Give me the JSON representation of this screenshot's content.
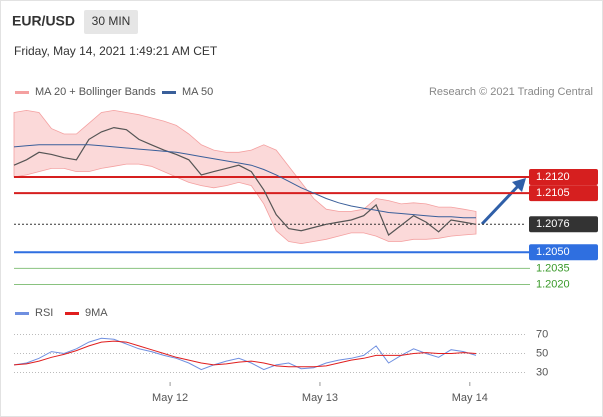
{
  "header": {
    "symbol": "EUR/USD",
    "timeframe": "30 MIN",
    "datetime": "Friday, May 14, 2021 1:49:21 AM CET",
    "source": "Research © 2021 Trading Central"
  },
  "chart_data": [
    {
      "type": "line",
      "x": [
        0,
        2,
        4,
        6,
        8,
        10,
        12,
        14,
        16,
        18,
        20,
        22,
        24,
        26,
        28,
        30,
        32,
        34,
        36,
        38,
        40,
        42,
        44,
        46,
        48,
        50,
        52,
        54,
        56,
        58,
        60,
        62,
        64,
        66,
        68,
        70,
        72,
        74
      ],
      "values": [
        1.2131,
        1.2136,
        1.2143,
        1.2141,
        1.2138,
        1.2136,
        1.2155,
        1.2162,
        1.2166,
        1.2164,
        1.2155,
        1.215,
        1.2145,
        1.2141,
        1.2136,
        1.2122,
        1.2125,
        1.2128,
        1.2131,
        1.2125,
        1.2108,
        1.2085,
        1.2072,
        1.207,
        1.2073,
        1.2076,
        1.2078,
        1.208,
        1.2084,
        1.2094,
        1.2066,
        1.2075,
        1.2084,
        1.2078,
        1.2069,
        1.208,
        1.2078,
        1.2076
      ],
      "color": "#555555",
      "bands": {
        "name": "MA 20 + Bollinger Bands",
        "color": "#f4a0a0",
        "upper": [
          1.218,
          1.2182,
          1.218,
          1.2165,
          1.216,
          1.216,
          1.217,
          1.218,
          1.2182,
          1.218,
          1.2178,
          1.2175,
          1.2172,
          1.2168,
          1.216,
          1.215,
          1.2145,
          1.2143,
          1.2143,
          1.2145,
          1.215,
          1.2145,
          1.213,
          1.2115,
          1.21,
          1.209,
          1.2088,
          1.2088,
          1.209,
          1.21,
          1.2098,
          1.2095,
          1.2096,
          1.2095,
          1.2092,
          1.2092,
          1.209,
          1.2088
        ],
        "lower": [
          1.212,
          1.2122,
          1.2125,
          1.2128,
          1.2128,
          1.2125,
          1.2125,
          1.2128,
          1.213,
          1.2132,
          1.2132,
          1.213,
          1.2125,
          1.212,
          1.2115,
          1.2112,
          1.211,
          1.2112,
          1.2115,
          1.2112,
          1.2095,
          1.207,
          1.206,
          1.2058,
          1.206,
          1.2062,
          1.2065,
          1.2068,
          1.2068,
          1.2065,
          1.206,
          1.206,
          1.2062,
          1.2062,
          1.2063,
          1.2065,
          1.2066,
          1.2067
        ]
      },
      "series": [
        {
          "name": "MA 50",
          "color": "#3a5f9a",
          "values": [
            1.2148,
            1.2149,
            1.215,
            1.215,
            1.215,
            1.215,
            1.215,
            1.2149,
            1.2148,
            1.2147,
            1.2146,
            1.2145,
            1.2144,
            1.2143,
            1.2141,
            1.2139,
            1.2137,
            1.2135,
            1.2133,
            1.2131,
            1.2127,
            1.2122,
            1.2116,
            1.211,
            1.2105,
            1.21,
            1.2096,
            1.2093,
            1.2091,
            1.2089,
            1.2087,
            1.2086,
            1.2085,
            1.2084,
            1.2083,
            1.2083,
            1.2082,
            1.2082
          ]
        }
      ],
      "levels": [
        {
          "value": 1.212,
          "label": "1.2120",
          "color": "#d61f1f",
          "boxed": true,
          "dashed": false
        },
        {
          "value": 1.2105,
          "label": "1.2105",
          "color": "#d61f1f",
          "boxed": true,
          "dashed": false
        },
        {
          "value": 1.2076,
          "label": "1.2076",
          "color": "#333333",
          "boxed": true,
          "dashed": true
        },
        {
          "value": 1.205,
          "label": "1.2050",
          "color": "#2f6fe0",
          "boxed": true,
          "dashed": false
        },
        {
          "value": 1.2035,
          "label": "1.2035",
          "color": "#3a9a2a",
          "boxed": false,
          "dashed": false
        },
        {
          "value": 1.202,
          "label": "1.2020",
          "color": "#3a9a2a",
          "boxed": false,
          "dashed": false
        }
      ],
      "xlim": [
        0,
        82
      ],
      "ylim": [
        1.2013,
        1.2187
      ]
    },
    {
      "type": "line",
      "x": [
        0,
        2,
        4,
        6,
        8,
        10,
        12,
        14,
        16,
        18,
        20,
        22,
        24,
        26,
        28,
        30,
        32,
        34,
        36,
        38,
        40,
        42,
        44,
        46,
        48,
        50,
        52,
        54,
        56,
        58,
        60,
        62,
        64,
        66,
        68,
        70,
        72,
        74
      ],
      "series": [
        {
          "name": "RSI",
          "color": "#6f8fe0",
          "values": [
            38,
            40,
            45,
            52,
            50,
            55,
            62,
            66,
            65,
            60,
            55,
            52,
            48,
            45,
            40,
            33,
            38,
            42,
            45,
            40,
            33,
            38,
            40,
            34,
            35,
            40,
            43,
            45,
            48,
            58,
            40,
            48,
            55,
            50,
            46,
            54,
            52,
            48
          ]
        },
        {
          "name": "9MA",
          "color": "#e01e1e",
          "values": [
            38,
            39,
            42,
            46,
            49,
            53,
            58,
            62,
            63,
            62,
            58,
            54,
            50,
            46,
            43,
            40,
            38,
            39,
            41,
            42,
            40,
            37,
            36,
            36,
            36,
            37,
            40,
            43,
            45,
            48,
            48,
            48,
            50,
            51,
            50,
            50,
            51,
            50
          ]
        }
      ],
      "xlim": [
        0,
        82
      ],
      "ylim": [
        20,
        80
      ],
      "yticks": [
        30,
        50,
        70
      ],
      "xticks": [
        {
          "value": 25,
          "label": "May 12"
        },
        {
          "value": 49,
          "label": "May 13"
        },
        {
          "value": 73,
          "label": "May 14"
        }
      ]
    }
  ]
}
